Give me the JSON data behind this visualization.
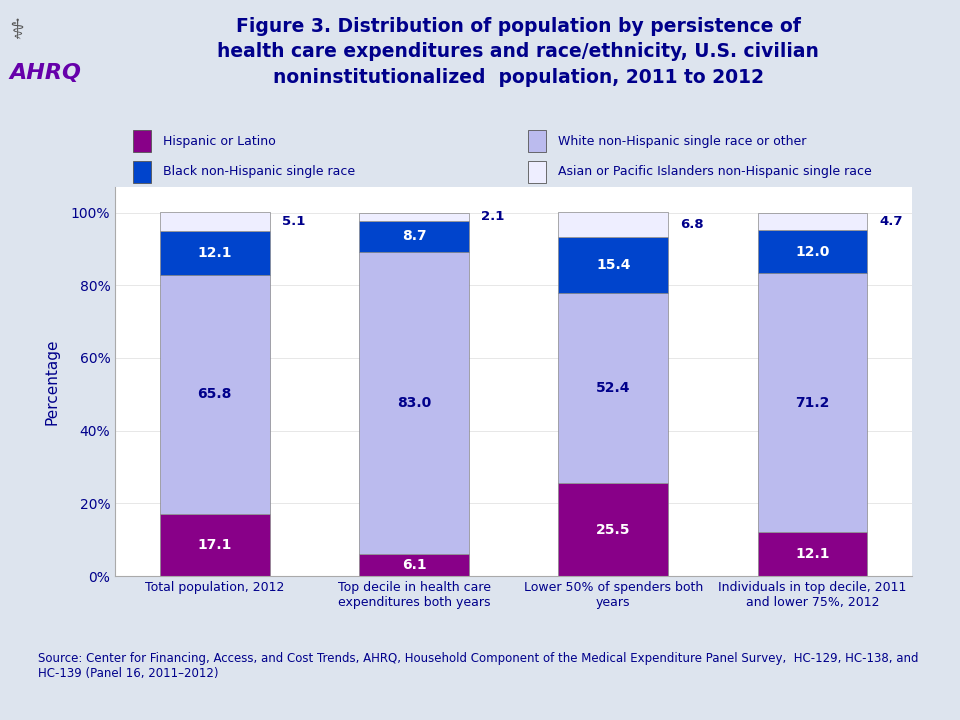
{
  "title": "Figure 3. Distribution of population by persistence of\nhealth care expenditures and race/ethnicity, U.S. civilian\nnoninstitutionalized  population, 2011 to 2012",
  "title_color": "#00008B",
  "background_color": "#DDE4EE",
  "plot_bg_color": "#FFFFFF",
  "categories": [
    "Total population, 2012",
    "Top decile in health care\nexpenditures both years",
    "Lower 50% of spenders both\nyears",
    "Individuals in top decile, 2011\nand lower 75%, 2012"
  ],
  "series": [
    {
      "name": "Hispanic or Latino",
      "color": "#880088",
      "values": [
        17.1,
        6.1,
        25.5,
        12.1
      ]
    },
    {
      "name": "White non-Hispanic single race or other",
      "color": "#BBBBEE",
      "values": [
        65.8,
        83.0,
        52.4,
        71.2
      ]
    },
    {
      "name": "Black non-Hispanic single race",
      "color": "#0044CC",
      "values": [
        12.1,
        8.7,
        15.4,
        12.0
      ]
    },
    {
      "name": "Asian or Pacific Islanders non-Hispanic single race",
      "color": "#EEEEFF",
      "values": [
        5.1,
        2.1,
        6.8,
        4.7
      ]
    }
  ],
  "ylabel": "Percentage",
  "yticks": [
    0,
    20,
    40,
    60,
    80,
    100
  ],
  "ytick_labels": [
    "0%",
    "20%",
    "40%",
    "60%",
    "80%",
    "100%"
  ],
  "source_text": "Source: Center for Financing, Access, and Cost Trends, AHRQ, Household Component of the Medical Expenditure Panel Survey,  HC-129, HC-138, and\nHC-139 (Panel 16, 2011–2012)",
  "separator_color": "#8899AA",
  "text_color": "#00008B",
  "bar_edge_color": "#888888",
  "bar_width": 0.55,
  "legend": [
    {
      "name": "Hispanic or Latino",
      "color": "#880088",
      "col": 0,
      "row": 0
    },
    {
      "name": "White non-Hispanic single race or other",
      "color": "#BBBBEE",
      "col": 1,
      "row": 0
    },
    {
      "name": "Black non-Hispanic single race",
      "color": "#0044CC",
      "col": 0,
      "row": 1
    },
    {
      "name": "Asian or Pacific Islanders non-Hispanic single race",
      "color": "#EEEEFF",
      "col": 1,
      "row": 1
    }
  ]
}
